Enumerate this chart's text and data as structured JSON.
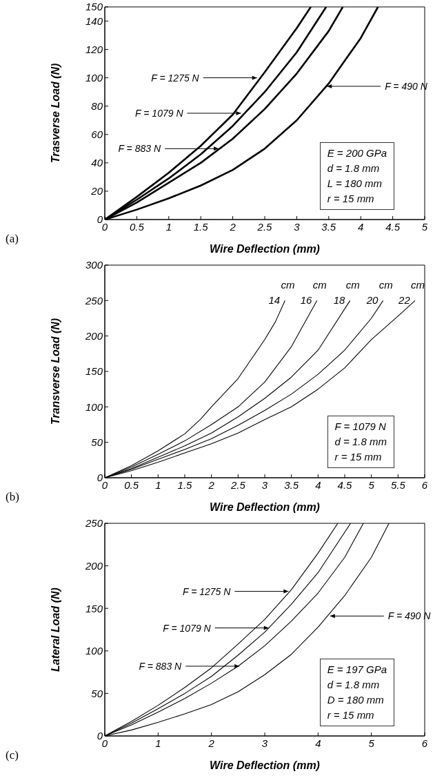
{
  "chart_data": [
    {
      "type": "line",
      "xlabel": "Wire Deflection (mm)",
      "ylabel": "Trasverse Load (N)",
      "xlim": [
        0,
        5
      ],
      "ylim": [
        0,
        150
      ],
      "xticks": [
        0,
        0.5,
        1,
        1.5,
        2,
        2.5,
        3,
        3.5,
        4,
        4.5,
        5
      ],
      "yticks": [
        0,
        20,
        40,
        60,
        80,
        100,
        120,
        140,
        150
      ],
      "marker": "none",
      "line_style": "solid",
      "series": [
        {
          "color": "#000000",
          "x": [
            0,
            0.5,
            1,
            1.5,
            2,
            2.5,
            3,
            3.22
          ],
          "values": [
            0,
            16,
            33,
            52,
            74,
            104,
            135,
            150
          ]
        },
        {
          "color": "#000000",
          "x": [
            0,
            0.5,
            1,
            1.5,
            2,
            2.5,
            3,
            3.46
          ],
          "values": [
            0,
            14,
            29,
            46,
            66,
            90,
            118,
            150
          ]
        },
        {
          "color": "#000000",
          "x": [
            0,
            0.5,
            1,
            1.5,
            2,
            2.5,
            3,
            3.5,
            3.72
          ],
          "values": [
            0,
            12,
            26,
            40,
            57,
            78,
            103,
            133,
            150
          ]
        },
        {
          "color": "#000000",
          "x": [
            0,
            0.5,
            1,
            1.5,
            2,
            2.5,
            3,
            3.5,
            4,
            4.27
          ],
          "values": [
            0,
            7,
            15,
            24,
            35,
            50,
            70,
            96,
            128,
            150
          ]
        }
      ],
      "annotations": [
        {
          "text": "F = 1275 N",
          "x": 2.4,
          "y": 100
        },
        {
          "text": "F = 1079 N",
          "x": 2.15,
          "y": 75
        },
        {
          "text": "F = 883 N",
          "x": 1.8,
          "y": 50
        },
        {
          "text": "F = 490 N",
          "x": 3.45,
          "y": 94
        },
        "E = 200 GPa",
        "d = 1.8 mm",
        "L = 180 mm",
        "r = 15 mm",
        "(a)"
      ]
    },
    {
      "type": "line",
      "xlabel": "Wire Deflection (mm)",
      "ylabel": "Transverse Load (N)",
      "xlim": [
        0,
        6
      ],
      "ylim": [
        0,
        300
      ],
      "xticks": [
        0,
        0.5,
        1,
        1.5,
        2,
        2.5,
        3,
        3.5,
        4,
        4.5,
        5,
        5.5,
        6
      ],
      "yticks": [
        0,
        50,
        100,
        150,
        200,
        250,
        300
      ],
      "marker": "none",
      "line_style": "solid",
      "series": [
        {
          "name": "14 cm",
          "color": "#000000",
          "x": [
            0,
            0.5,
            1,
            1.5,
            1.8,
            2,
            2.5,
            3,
            3.2,
            3.38
          ],
          "values": [
            0,
            17,
            38,
            62,
            83,
            100,
            140,
            195,
            220,
            250
          ]
        },
        {
          "name": "16 cm",
          "color": "#000000",
          "x": [
            0,
            0.5,
            1,
            1.5,
            2,
            2.5,
            3,
            3.5,
            3.98
          ],
          "values": [
            0,
            15,
            33,
            52,
            75,
            100,
            135,
            185,
            250
          ]
        },
        {
          "name": "18 cm",
          "color": "#000000",
          "x": [
            0,
            0.5,
            1,
            1.5,
            2,
            2.5,
            3,
            3.5,
            4,
            4.6
          ],
          "values": [
            0,
            13,
            29,
            45,
            63,
            86,
            112,
            142,
            180,
            250
          ]
        },
        {
          "name": "20 cm",
          "color": "#000000",
          "x": [
            0,
            0.5,
            1,
            1.5,
            2,
            2.5,
            3,
            3.5,
            4,
            4.5,
            5,
            5.22
          ],
          "values": [
            0,
            12,
            26,
            40,
            55,
            74,
            95,
            118,
            146,
            180,
            225,
            250
          ]
        },
        {
          "name": "22 cm",
          "color": "#000000",
          "x": [
            0,
            0.5,
            1,
            1.5,
            2,
            2.5,
            3,
            3.5,
            4,
            4.5,
            5,
            5.5,
            5.82
          ],
          "values": [
            0,
            10,
            22,
            35,
            48,
            63,
            82,
            100,
            125,
            155,
            195,
            228,
            250
          ]
        }
      ],
      "annotations": [
        "F = 1079 N",
        "d = 1.8 mm",
        "r = 15 mm",
        "(b)"
      ]
    },
    {
      "type": "line",
      "xlabel": "Wire Deflection (mm)",
      "ylabel": "Lateral Load (N)",
      "xlim": [
        0,
        6
      ],
      "ylim": [
        0,
        250
      ],
      "xticks": [
        0,
        1,
        2,
        3,
        4,
        5,
        6
      ],
      "yticks": [
        0,
        50,
        100,
        150,
        200,
        250
      ],
      "marker": "none",
      "line_style": "solid",
      "series": [
        {
          "color": "#000000",
          "x": [
            0,
            0.5,
            1,
            1.5,
            2,
            2.5,
            3,
            3.5,
            4,
            4.37
          ],
          "values": [
            0,
            17,
            36,
            57,
            80,
            108,
            137,
            172,
            215,
            250
          ]
        },
        {
          "color": "#000000",
          "x": [
            0,
            0.5,
            1,
            1.5,
            2,
            2.5,
            3,
            3.5,
            4,
            4.61
          ],
          "values": [
            0,
            15,
            32,
            50,
            70,
            95,
            122,
            155,
            192,
            250
          ]
        },
        {
          "color": "#000000",
          "x": [
            0,
            0.5,
            1,
            1.5,
            2,
            2.5,
            3,
            3.5,
            4,
            4.5,
            4.85
          ],
          "values": [
            0,
            13,
            28,
            44,
            62,
            82,
            106,
            135,
            168,
            210,
            250
          ]
        },
        {
          "color": "#000000",
          "x": [
            0,
            0.5,
            1,
            1.5,
            2,
            2.5,
            3,
            3.5,
            4,
            4.5,
            5,
            5.33
          ],
          "values": [
            0,
            7,
            16,
            26,
            37,
            52,
            72,
            96,
            128,
            165,
            210,
            250
          ]
        }
      ],
      "annotations": [
        {
          "text": "F = 1275 N",
          "x": 3.47,
          "y": 170
        },
        {
          "text": "F = 1079 N",
          "x": 3.1,
          "y": 127
        },
        {
          "text": "F = 883 N",
          "x": 2.55,
          "y": 82
        },
        {
          "text": "F = 490 N",
          "x": 4.2,
          "y": 141
        },
        "E = 197 GPa",
        "d = 1.8 mm",
        "D = 180 mm",
        "r = 15 mm",
        "(c)"
      ]
    }
  ]
}
